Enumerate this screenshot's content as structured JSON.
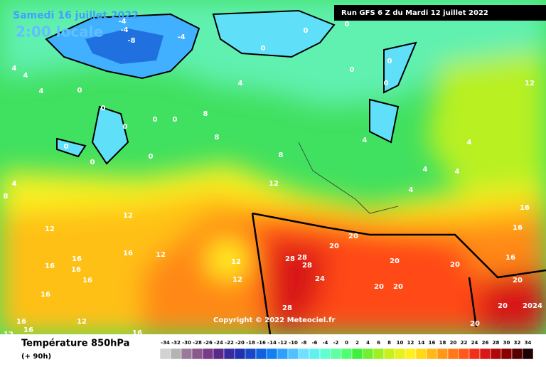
{
  "header": {
    "date": "Samedi 16 juillet 2022",
    "time": "2:00 locale",
    "run": "Run GFS 6 Z du Mardi 12 juillet 2022"
  },
  "copyright": "Copyright © 2022 Meteociel.fr",
  "legend": {
    "title": "Température 850hPa",
    "lead": "(+ 90h)",
    "ticks": [
      -34,
      -32,
      -30,
      -28,
      -26,
      -24,
      -22,
      -20,
      -18,
      -16,
      -14,
      -12,
      -10,
      -8,
      -6,
      -4,
      -2,
      0,
      2,
      4,
      6,
      8,
      10,
      12,
      14,
      16,
      18,
      20,
      22,
      24,
      26,
      28,
      30,
      32,
      34
    ],
    "colors": [
      "#d2d2d2",
      "#b4b4b4",
      "#9a7a9a",
      "#8a5a8a",
      "#7a3a8a",
      "#5a2a8a",
      "#3a2aa0",
      "#2030b0",
      "#1848c8",
      "#1060e0",
      "#1080f0",
      "#30a0ff",
      "#50c0ff",
      "#70e0ff",
      "#60f0f0",
      "#60ffd0",
      "#60ffa0",
      "#50ff70",
      "#40f040",
      "#70f030",
      "#a0f020",
      "#c8f020",
      "#e8f020",
      "#fff020",
      "#ffd818",
      "#ffb818",
      "#ff9818",
      "#ff7818",
      "#ff5818",
      "#f03018",
      "#d81818",
      "#b00808",
      "#880000",
      "#580000",
      "#200000"
    ]
  },
  "map": {
    "contour_labels": [
      -4,
      -4,
      -4,
      -8,
      0,
      0,
      0,
      0,
      0,
      0,
      0,
      0,
      0,
      0,
      0,
      0,
      0,
      0,
      4,
      4,
      4,
      4,
      4,
      4,
      4,
      4,
      4,
      4,
      8,
      8,
      8,
      8,
      12,
      12,
      12,
      12,
      12,
      12,
      12,
      12,
      12,
      16,
      16,
      16,
      16,
      16,
      16,
      16,
      16,
      16,
      16,
      16,
      16,
      20,
      20,
      20,
      20,
      20,
      20,
      20,
      20,
      20,
      20,
      24,
      24,
      28,
      28,
      28,
      28
    ]
  }
}
